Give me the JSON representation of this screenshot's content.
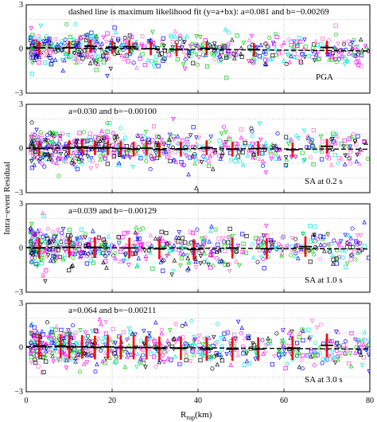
{
  "chart_data": [
    {
      "type": "scatter",
      "annotation": "dashed line is maximum likelihood fit (y=a+bx): a=0.081 and b=−0.00269",
      "label": "PGA",
      "fit": {
        "a": 0.081,
        "b": -0.00269
      },
      "bin_means": [
        {
          "x": 3,
          "mean": 0.08,
          "sd": 0.45
        },
        {
          "x": 10,
          "mean": 0.1,
          "sd": 0.45
        },
        {
          "x": 15,
          "mean": 0.18,
          "sd": 0.45
        },
        {
          "x": 20,
          "mean": 0.12,
          "sd": 0.45
        },
        {
          "x": 24,
          "mean": 0.15,
          "sd": 0.45
        },
        {
          "x": 29,
          "mean": 0.02,
          "sd": 0.45
        },
        {
          "x": 35,
          "mean": -0.05,
          "sd": 0.45
        },
        {
          "x": 42,
          "mean": 0.05,
          "sd": 0.45
        },
        {
          "x": 53,
          "mean": -0.05,
          "sd": 0.45
        },
        {
          "x": 70,
          "mean": 0.1,
          "sd": 0.45
        }
      ],
      "xlim": [
        0,
        80
      ],
      "ylim": [
        -3,
        3
      ]
    },
    {
      "type": "scatter",
      "annotation": "a=0.030 and b=−0.00100",
      "label": "",
      "fit": {
        "a": 0.03,
        "b": -0.001
      },
      "bin_means": [
        {
          "x": 3,
          "mean": 0.0,
          "sd": 0.5
        },
        {
          "x": 10,
          "mean": 0.05,
          "sd": 0.5
        },
        {
          "x": 13,
          "mean": 0.1,
          "sd": 0.5
        },
        {
          "x": 16,
          "mean": 0.05,
          "sd": 0.5
        },
        {
          "x": 19,
          "mean": 0.05,
          "sd": 0.5
        },
        {
          "x": 22,
          "mean": 0.0,
          "sd": 0.5
        },
        {
          "x": 25,
          "mean": -0.05,
          "sd": 0.5
        },
        {
          "x": 28,
          "mean": 0.02,
          "sd": 0.5
        },
        {
          "x": 31,
          "mean": -0.08,
          "sd": 0.5
        },
        {
          "x": 36,
          "mean": -0.05,
          "sd": 0.5
        },
        {
          "x": 42,
          "mean": 0.05,
          "sd": 0.5
        },
        {
          "x": 48,
          "mean": -0.05,
          "sd": 0.5
        },
        {
          "x": 54,
          "mean": 0.0,
          "sd": 0.5
        },
        {
          "x": 62,
          "mean": -0.08,
          "sd": 0.5
        },
        {
          "x": 70,
          "mean": 0.15,
          "sd": 0.5
        }
      ],
      "xlim": [
        0,
        80
      ],
      "ylim": [
        -3,
        3
      ]
    },
    {
      "type": "scatter",
      "annotation": "a=0.039 and b=−0.00129",
      "label": "SA at 1.0 s",
      "fit": {
        "a": 0.039,
        "b": -0.00129
      },
      "bin_means": [
        {
          "x": 3,
          "mean": 0.0,
          "sd": 0.7
        },
        {
          "x": 10,
          "mean": 0.05,
          "sd": 0.7
        },
        {
          "x": 16,
          "mean": 0.05,
          "sd": 0.7
        },
        {
          "x": 24,
          "mean": 0.0,
          "sd": 0.7
        },
        {
          "x": 31,
          "mean": -0.05,
          "sd": 0.7
        },
        {
          "x": 39,
          "mean": -0.1,
          "sd": 0.7
        },
        {
          "x": 48,
          "mean": 0.0,
          "sd": 0.7
        },
        {
          "x": 56,
          "mean": -0.05,
          "sd": 0.7
        },
        {
          "x": 65,
          "mean": 0.1,
          "sd": 0.7
        }
      ],
      "xlim": [
        0,
        80
      ],
      "ylim": [
        -3,
        3
      ]
    },
    {
      "type": "scatter",
      "annotation": "a=0.064 and b=−0.00211",
      "label": "SA at 3.0 s",
      "fit": {
        "a": 0.064,
        "b": -0.00211
      },
      "bin_means": [
        {
          "x": 3,
          "mean": 0.1,
          "sd": 0.8
        },
        {
          "x": 8,
          "mean": 0.1,
          "sd": 0.8
        },
        {
          "x": 10,
          "mean": 0.05,
          "sd": 0.8
        },
        {
          "x": 13,
          "mean": 0.05,
          "sd": 0.8
        },
        {
          "x": 16,
          "mean": 0.0,
          "sd": 0.8
        },
        {
          "x": 19,
          "mean": 0.05,
          "sd": 0.8
        },
        {
          "x": 22,
          "mean": 0.0,
          "sd": 0.8
        },
        {
          "x": 25,
          "mean": 0.0,
          "sd": 0.8
        },
        {
          "x": 28,
          "mean": 0.0,
          "sd": 0.8
        },
        {
          "x": 31,
          "mean": -0.05,
          "sd": 0.8
        },
        {
          "x": 36,
          "mean": -0.05,
          "sd": 0.8
        },
        {
          "x": 42,
          "mean": -0.1,
          "sd": 0.8
        },
        {
          "x": 48,
          "mean": -0.1,
          "sd": 0.8
        },
        {
          "x": 54,
          "mean": -0.1,
          "sd": 0.8
        },
        {
          "x": 62,
          "mean": -0.05,
          "sd": 0.8
        },
        {
          "x": 70,
          "mean": 0.15,
          "sd": 0.8
        }
      ],
      "xlim": [
        0,
        80
      ],
      "ylim": [
        -3,
        3
      ]
    }
  ],
  "axes": {
    "ylabel": "Intra−event Residual",
    "xlabel_main": "R",
    "xlabel_sub": "rup",
    "xlabel_unit": "(km)",
    "xticks": [
      "0",
      "20",
      "40",
      "60",
      "80"
    ],
    "yticks": [
      "−3",
      "0",
      "3"
    ],
    "xtick_values": [
      0,
      20,
      40,
      60,
      80
    ],
    "ytick_values": [
      -3,
      0,
      3
    ]
  },
  "panel_overlay_label": "SA at 0.2 s",
  "colors": {
    "bin_bars": "#ff0000",
    "fit_line": "#000000",
    "grid": "#999999",
    "markers": [
      "#ff00ff",
      "#00e5e5",
      "#0000ff",
      "#000000",
      "#00cc00",
      "#ff66cc"
    ]
  }
}
